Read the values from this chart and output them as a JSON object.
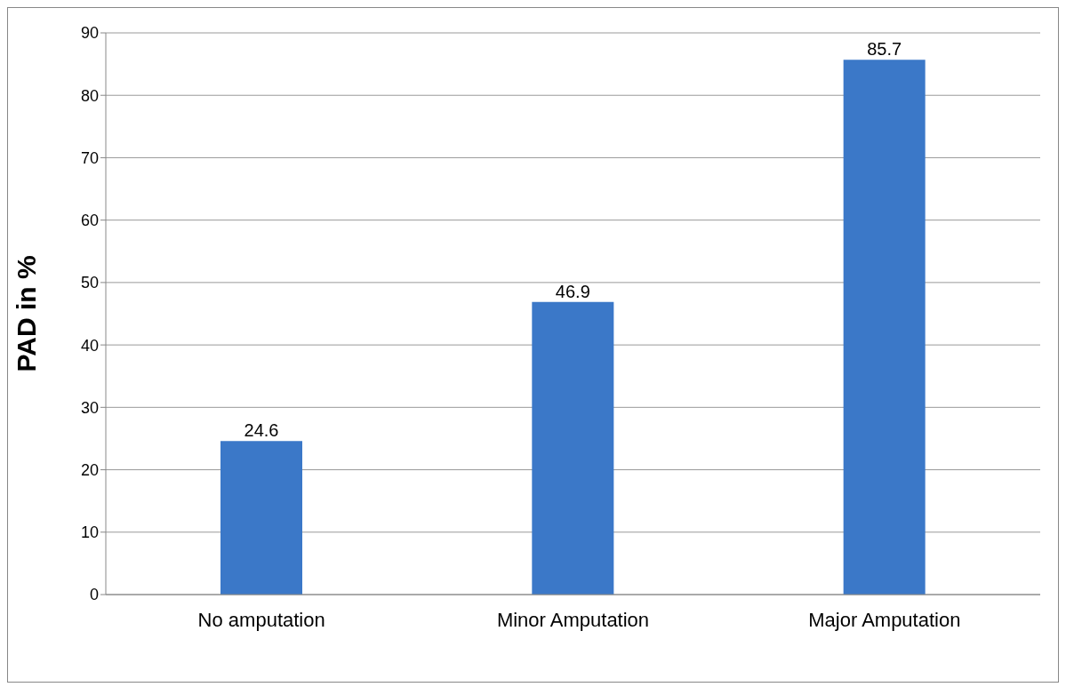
{
  "chart_data": {
    "type": "bar",
    "ylabel": "PAD in %",
    "categories": [
      "No amputation",
      "Minor Amputation",
      "Major Amputation"
    ],
    "values": [
      24.6,
      46.9,
      85.7
    ],
    "color": "#3b78c8",
    "ylim": [
      0,
      90
    ],
    "yticks": [
      0,
      10,
      20,
      30,
      40,
      50,
      60,
      70,
      80,
      90
    ],
    "grid": "y",
    "data_labels": true
  }
}
